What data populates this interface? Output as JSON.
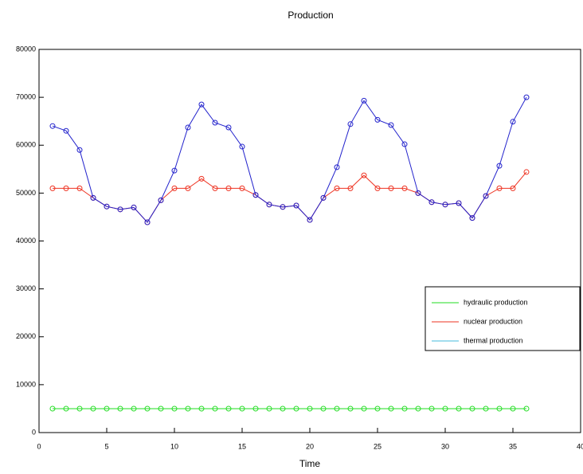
{
  "chart_data": {
    "type": "line",
    "title": "Production",
    "x_label": "Time",
    "x": [
      1,
      2,
      3,
      4,
      5,
      6,
      7,
      8,
      9,
      10,
      11,
      12,
      13,
      14,
      15,
      16,
      17,
      18,
      19,
      20,
      21,
      22,
      23,
      24,
      25,
      26,
      27,
      28,
      29,
      30,
      31,
      32,
      33,
      34,
      35,
      36
    ],
    "series": [
      {
        "name": "hydraulic production",
        "color": "#22dd22",
        "values": [
          5000,
          5000,
          5000,
          5000,
          5000,
          5000,
          5000,
          5000,
          5000,
          5000,
          5000,
          5000,
          5000,
          5000,
          5000,
          5000,
          5000,
          5000,
          5000,
          5000,
          5000,
          5000,
          5000,
          5000,
          5000,
          5000,
          5000,
          5000,
          5000,
          5000,
          5000,
          5000,
          5000,
          5000,
          5000,
          5000
        ]
      },
      {
        "name": "nuclear production",
        "color": "#ee3322",
        "values": [
          51000,
          51000,
          51000,
          49000,
          47200,
          46600,
          47000,
          43900,
          48500,
          51000,
          51000,
          53000,
          51000,
          51000,
          51000,
          49600,
          47600,
          47100,
          47400,
          44400,
          49000,
          51000,
          51000,
          53700,
          51000,
          51000,
          51000,
          50000,
          48100,
          47600,
          47900,
          44800,
          49400,
          51000,
          51000,
          54400
        ]
      },
      {
        "name": "thermal production",
        "color": "#2222cc",
        "legend_color": "#44bbdd",
        "values": [
          64000,
          63000,
          59000,
          49000,
          47200,
          46600,
          47000,
          43900,
          48500,
          54700,
          63700,
          68500,
          64700,
          63700,
          59700,
          49600,
          47600,
          47100,
          47400,
          44400,
          49000,
          55400,
          64400,
          69300,
          65300,
          64200,
          60200,
          50000,
          48100,
          47600,
          47900,
          44800,
          49400,
          55700,
          64900,
          70000
        ]
      }
    ],
    "xlim": [
      0,
      40
    ],
    "xticks": [
      0,
      5,
      10,
      15,
      20,
      25,
      30,
      35,
      40
    ],
    "ylim": [
      0,
      80000
    ],
    "yticks": [
      0,
      10000,
      20000,
      30000,
      40000,
      50000,
      60000,
      70000,
      80000
    ],
    "legend": "right",
    "markers": "circle"
  }
}
